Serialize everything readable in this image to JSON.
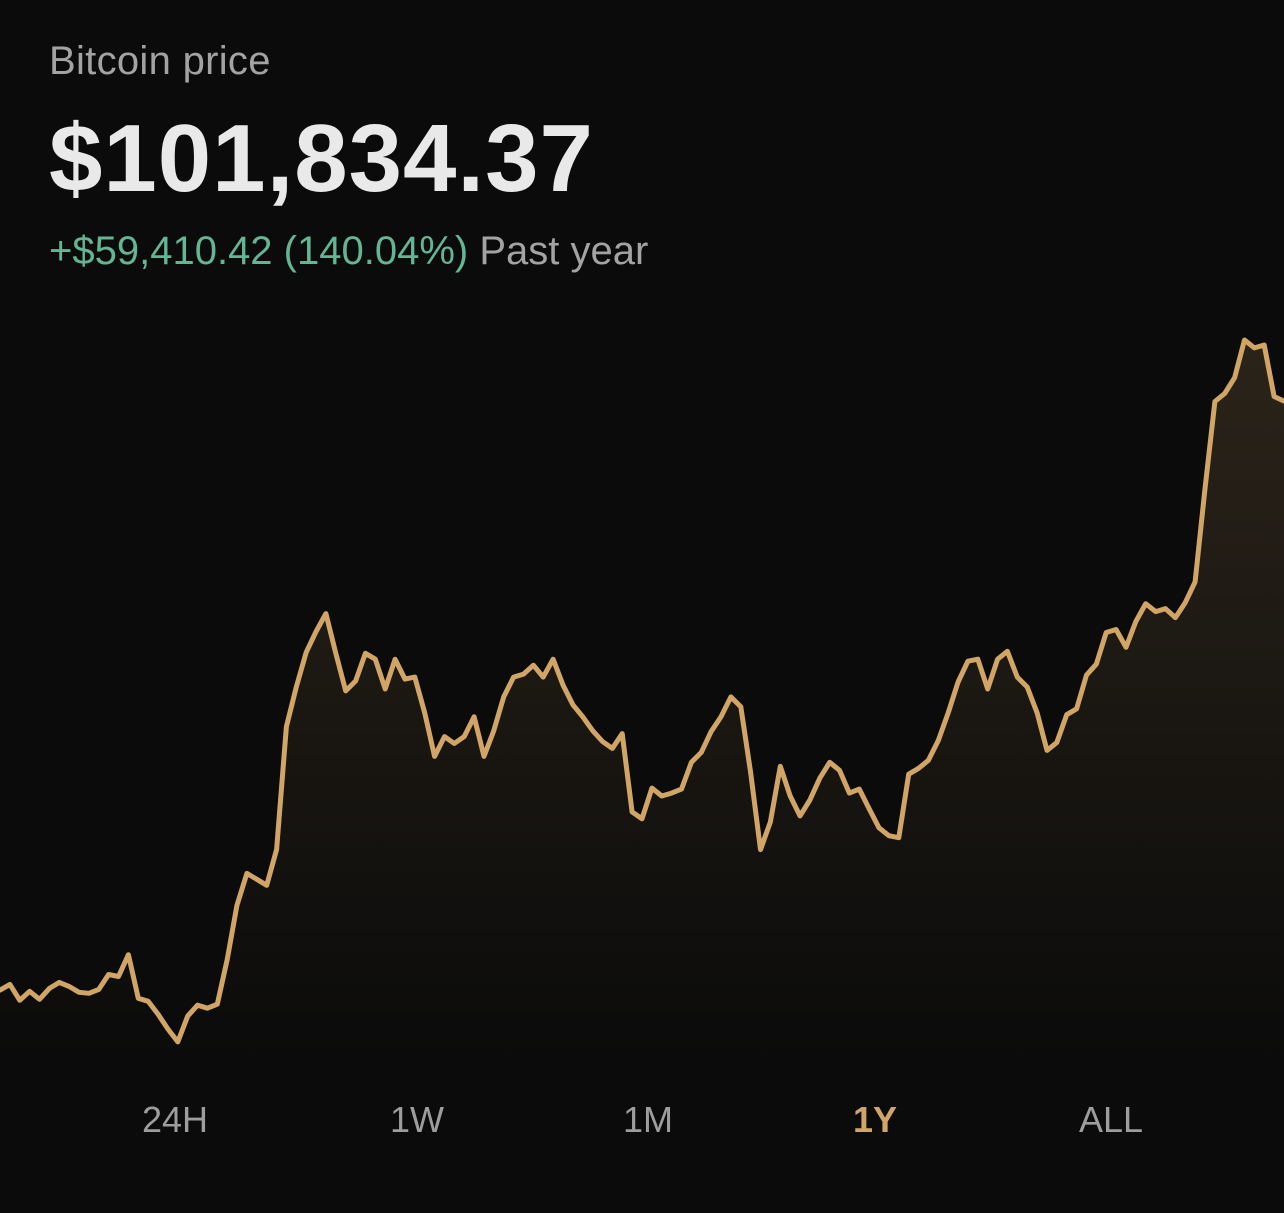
{
  "header": {
    "asset_label": "Bitcoin price",
    "price": "$101,834.37",
    "change_value": "+$59,410.42 (140.04%)",
    "change_period": "Past year"
  },
  "ranges": [
    {
      "label": "24H",
      "active": false
    },
    {
      "label": "1W",
      "active": false
    },
    {
      "label": "1M",
      "active": false
    },
    {
      "label": "1Y",
      "active": true
    },
    {
      "label": "ALL",
      "active": false
    }
  ],
  "colors": {
    "background": "#0b0b0b",
    "line": "#d1a565",
    "positive": "#63b593",
    "muted": "#a3a3a3",
    "active_range": "#d1a565"
  },
  "chart_data": {
    "type": "area",
    "period": "1Y",
    "y_start": 42424,
    "y_end": 101834,
    "values": [
      42424,
      43000,
      41400,
      42300,
      41500,
      42600,
      43200,
      42800,
      42200,
      42100,
      42500,
      44000,
      43800,
      46000,
      41600,
      41300,
      40000,
      38500,
      37200,
      39800,
      40900,
      40600,
      41000,
      45500,
      51000,
      54200,
      53600,
      53000,
      56600,
      69000,
      73000,
      76500,
      78600,
      80400,
      76400,
      72600,
      73600,
      76400,
      75800,
      72800,
      75800,
      73800,
      74000,
      70400,
      66000,
      68000,
      67300,
      68000,
      70000,
      66000,
      68600,
      72000,
      74000,
      74300,
      75200,
      74000,
      75800,
      73200,
      71200,
      70000,
      68600,
      67500,
      66800,
      68300,
      60400,
      59700,
      62800,
      62000,
      62300,
      62700,
      65400,
      66400,
      68500,
      70000,
      72000,
      71000,
      64400,
      56600,
      59400,
      65000,
      62000,
      60000,
      61600,
      63800,
      65400,
      64600,
      62300,
      62700,
      60700,
      58800,
      58000,
      57800,
      64200,
      64800,
      65600,
      67600,
      70400,
      73500,
      75600,
      75800,
      72800,
      75800,
      76600,
      74000,
      73000,
      70400,
      66600,
      67400,
      70200,
      70800,
      74200,
      75300,
      78500,
      78800,
      77000,
      79600,
      81400,
      80600,
      80900,
      80000,
      81500,
      83600,
      93000,
      101800,
      102600,
      104200,
      108000,
      107200,
      107500,
      102300,
      101834
    ]
  }
}
